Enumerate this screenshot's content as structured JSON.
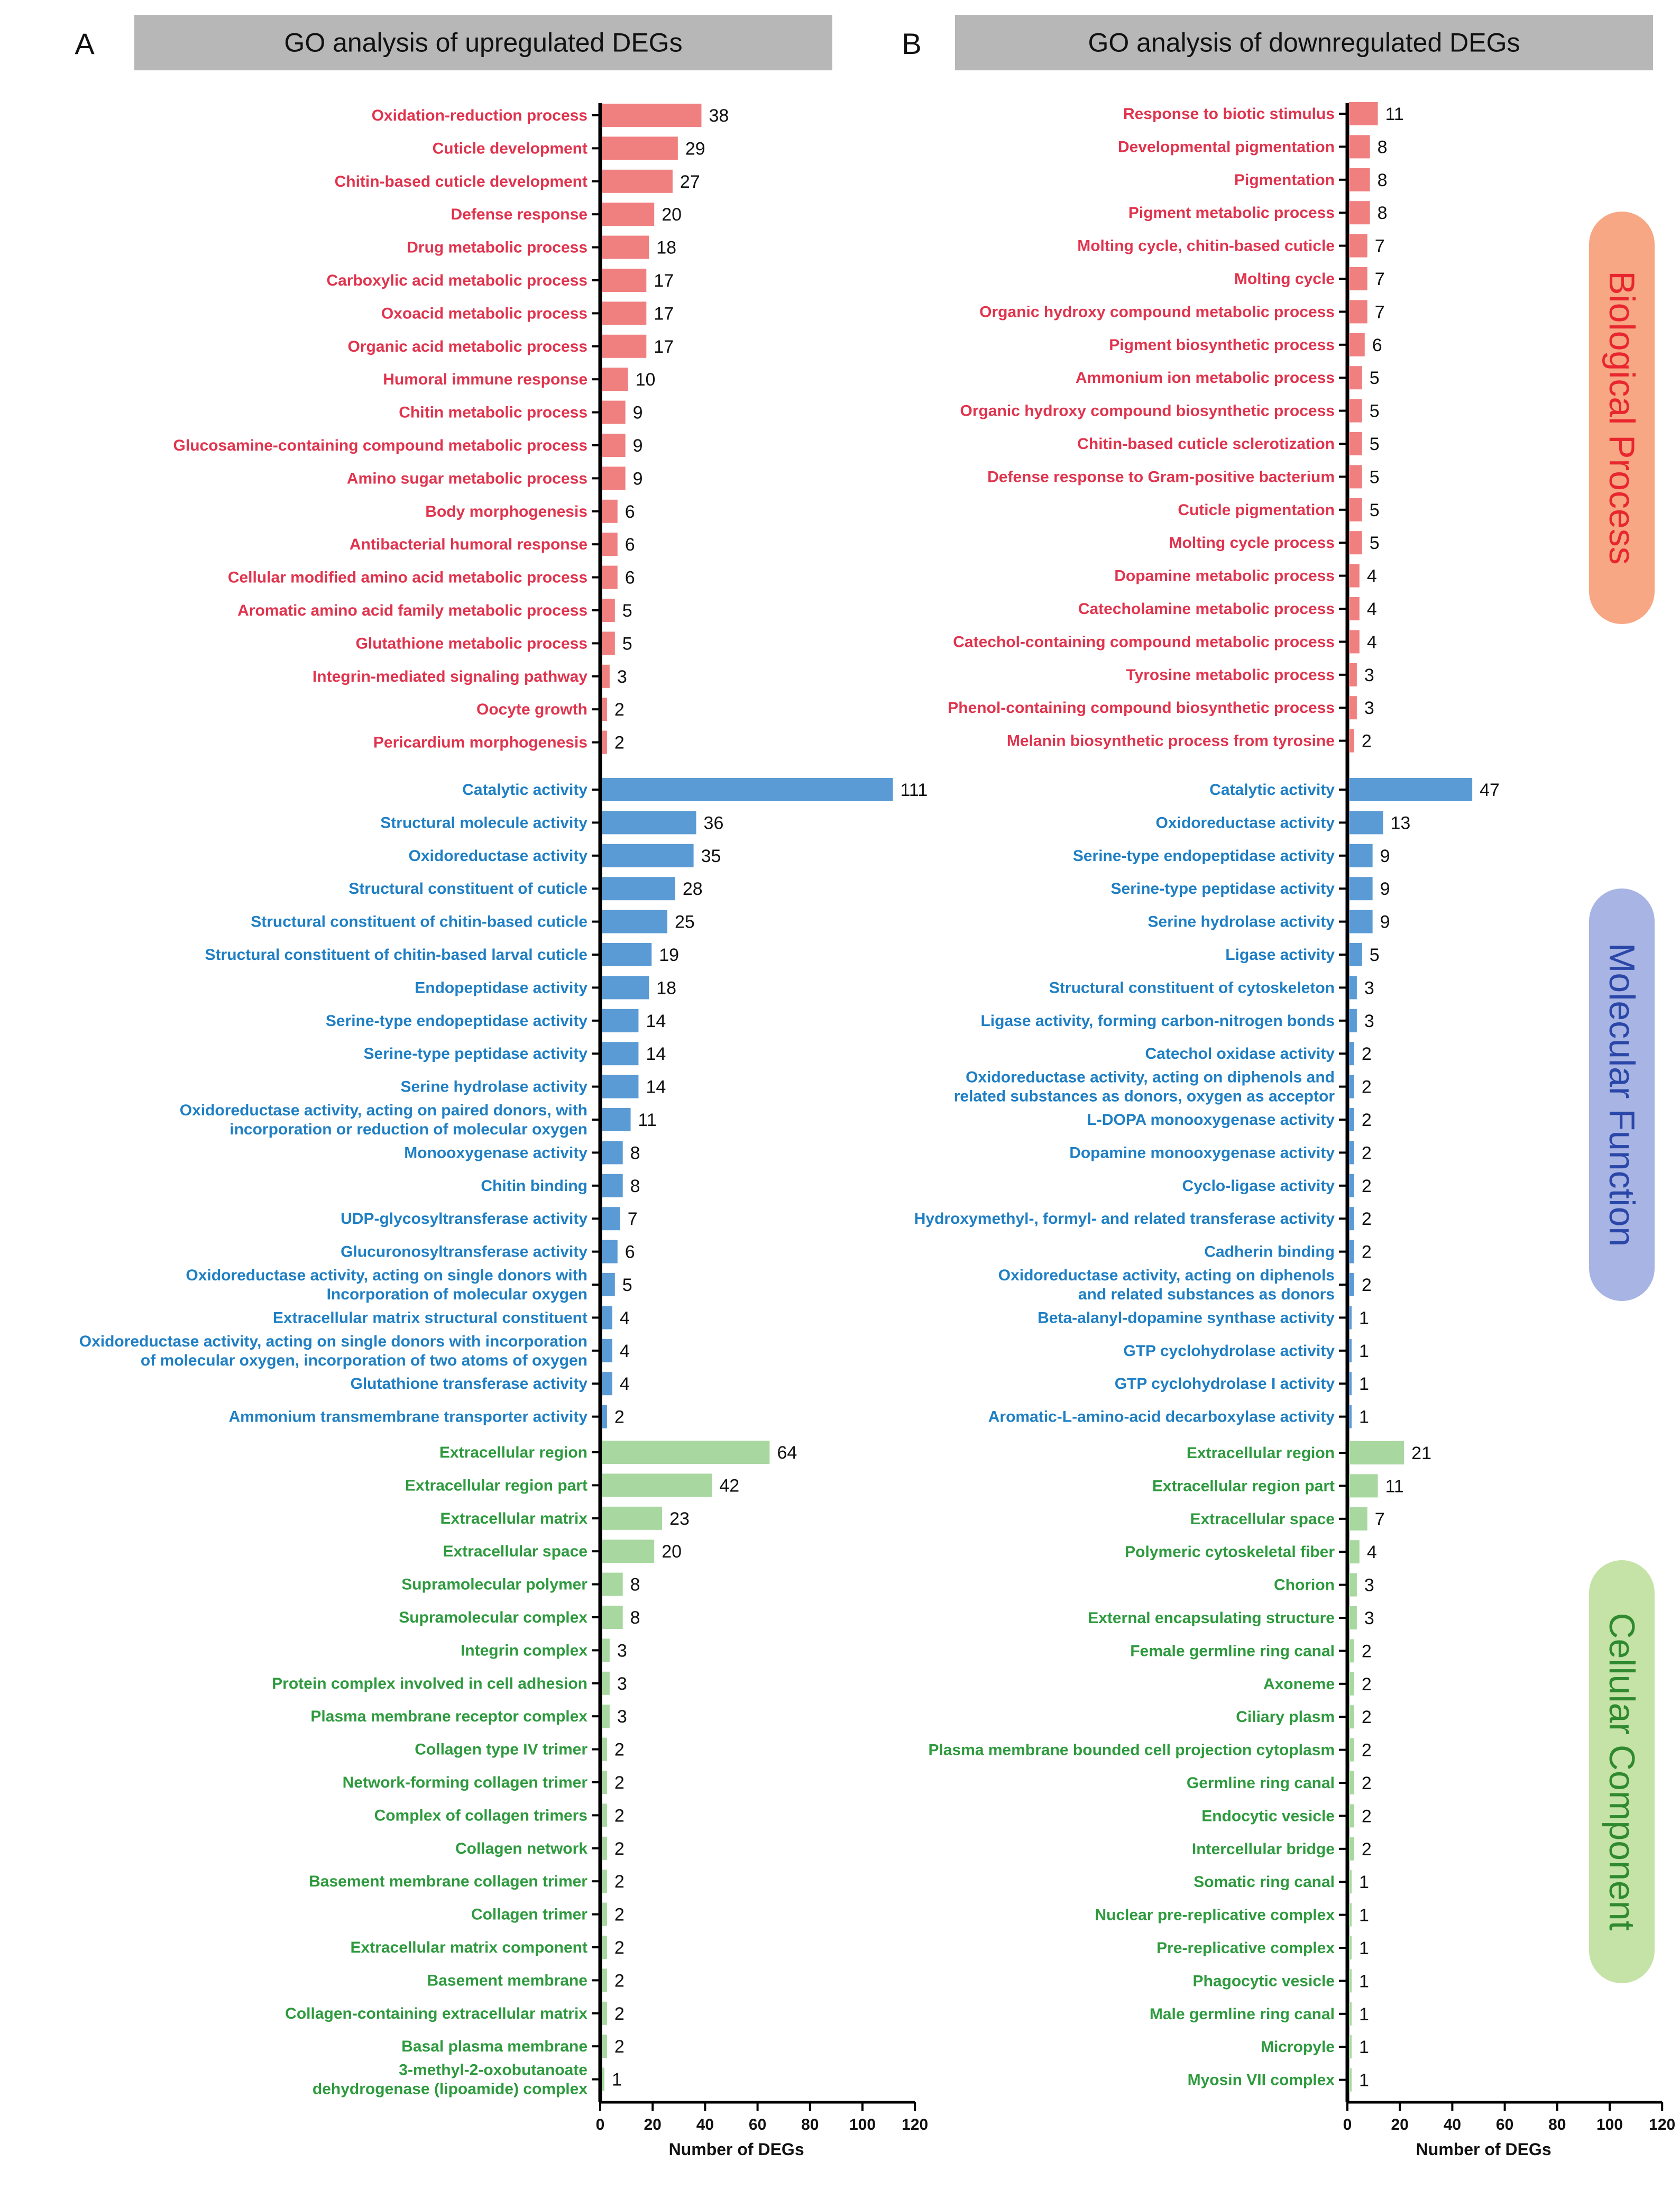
{
  "chart_data": [
    {
      "panel": "A",
      "type": "bar",
      "orientation": "horizontal",
      "title": "GO analysis of upregulated DEGs",
      "xlabel": "Number of DEGs",
      "xlim": [
        0,
        120
      ],
      "xticks": [
        0,
        20,
        40,
        60,
        80,
        100,
        120
      ],
      "groups": [
        {
          "name": "Biological Process",
          "color": "#f08080",
          "label_color": "#e0344e",
          "terms": [
            {
              "label": [
                "Oxidation-reduction process"
              ],
              "value": 38
            },
            {
              "label": [
                "Cuticle development"
              ],
              "value": 29
            },
            {
              "label": [
                "Chitin-based cuticle development"
              ],
              "value": 27
            },
            {
              "label": [
                "Defense response"
              ],
              "value": 20
            },
            {
              "label": [
                "Drug metabolic process"
              ],
              "value": 18
            },
            {
              "label": [
                "Carboxylic acid metabolic process"
              ],
              "value": 17
            },
            {
              "label": [
                "Oxoacid metabolic process"
              ],
              "value": 17
            },
            {
              "label": [
                "Organic acid metabolic process"
              ],
              "value": 17
            },
            {
              "label": [
                "Humoral immune response"
              ],
              "value": 10
            },
            {
              "label": [
                "Chitin metabolic process"
              ],
              "value": 9
            },
            {
              "label": [
                "Glucosamine-containing compound metabolic process"
              ],
              "value": 9
            },
            {
              "label": [
                "Amino sugar metabolic process"
              ],
              "value": 9
            },
            {
              "label": [
                "Body morphogenesis"
              ],
              "value": 6
            },
            {
              "label": [
                "Antibacterial humoral response"
              ],
              "value": 6
            },
            {
              "label": [
                "Cellular modified amino acid metabolic process"
              ],
              "value": 6
            },
            {
              "label": [
                "Aromatic amino acid family metabolic process"
              ],
              "value": 5
            },
            {
              "label": [
                "Glutathione metabolic process"
              ],
              "value": 5
            },
            {
              "label": [
                "Integrin-mediated signaling pathway"
              ],
              "value": 3
            },
            {
              "label": [
                "Oocyte growth"
              ],
              "value": 2
            },
            {
              "label": [
                "Pericardium morphogenesis"
              ],
              "value": 2
            }
          ]
        },
        {
          "name": "Molecular Function",
          "color": "#5b9bd5",
          "label_color": "#1f7fc4",
          "terms": [
            {
              "label": [
                "Catalytic activity"
              ],
              "value": 111
            },
            {
              "label": [
                "Structural molecule activity"
              ],
              "value": 36
            },
            {
              "label": [
                "Oxidoreductase activity"
              ],
              "value": 35
            },
            {
              "label": [
                "Structural constituent of cuticle"
              ],
              "value": 28
            },
            {
              "label": [
                "Structural constituent of chitin-based cuticle"
              ],
              "value": 25
            },
            {
              "label": [
                "Structural constituent of chitin-based larval cuticle"
              ],
              "value": 19
            },
            {
              "label": [
                "Endopeptidase activity"
              ],
              "value": 18
            },
            {
              "label": [
                "Serine-type endopeptidase activity"
              ],
              "value": 14
            },
            {
              "label": [
                "Serine-type peptidase activity"
              ],
              "value": 14
            },
            {
              "label": [
                "Serine hydrolase activity"
              ],
              "value": 14
            },
            {
              "label": [
                "Oxidoreductase activity, acting on paired donors, with",
                "incorporation or reduction of molecular oxygen"
              ],
              "value": 11
            },
            {
              "label": [
                "Monooxygenase activity"
              ],
              "value": 8
            },
            {
              "label": [
                "Chitin binding"
              ],
              "value": 8
            },
            {
              "label": [
                "UDP-glycosyltransferase activity"
              ],
              "value": 7
            },
            {
              "label": [
                "Glucuronosyltransferase activity"
              ],
              "value": 6
            },
            {
              "label": [
                "Oxidoreductase activity, acting on single donors with",
                "Incorporation of molecular oxygen"
              ],
              "value": 5
            },
            {
              "label": [
                "Extracellular matrix structural constituent"
              ],
              "value": 4
            },
            {
              "label": [
                "Oxidoreductase activity, acting on single donors with incorporation",
                "of molecular oxygen, incorporation of two atoms of oxygen"
              ],
              "value": 4
            },
            {
              "label": [
                "Glutathione transferase activity"
              ],
              "value": 4
            },
            {
              "label": [
                "Ammonium transmembrane transporter activity"
              ],
              "value": 2
            }
          ]
        },
        {
          "name": "Cellular Component",
          "color": "#a8d8a0",
          "label_color": "#2e9a3e",
          "terms": [
            {
              "label": [
                "Extracellular region"
              ],
              "value": 64
            },
            {
              "label": [
                "Extracellular region part"
              ],
              "value": 42
            },
            {
              "label": [
                "Extracellular matrix"
              ],
              "value": 23
            },
            {
              "label": [
                "Extracellular space"
              ],
              "value": 20
            },
            {
              "label": [
                "Supramolecular polymer"
              ],
              "value": 8
            },
            {
              "label": [
                "Supramolecular complex"
              ],
              "value": 8
            },
            {
              "label": [
                "Integrin complex"
              ],
              "value": 3
            },
            {
              "label": [
                "Protein complex involved in cell adhesion"
              ],
              "value": 3
            },
            {
              "label": [
                "Plasma membrane receptor complex"
              ],
              "value": 3
            },
            {
              "label": [
                "Collagen type IV trimer"
              ],
              "value": 2
            },
            {
              "label": [
                "Network-forming collagen trimer"
              ],
              "value": 2
            },
            {
              "label": [
                "Complex of collagen trimers"
              ],
              "value": 2
            },
            {
              "label": [
                "Collagen network"
              ],
              "value": 2
            },
            {
              "label": [
                "Basement membrane collagen trimer"
              ],
              "value": 2
            },
            {
              "label": [
                "Collagen trimer"
              ],
              "value": 2
            },
            {
              "label": [
                "Extracellular matrix component"
              ],
              "value": 2
            },
            {
              "label": [
                "Basement membrane"
              ],
              "value": 2
            },
            {
              "label": [
                "Collagen-containing extracellular matrix"
              ],
              "value": 2
            },
            {
              "label": [
                "Basal plasma membrane"
              ],
              "value": 2
            },
            {
              "label": [
                "3-methyl-2-oxobutanoate",
                "dehydrogenase (lipoamide) complex"
              ],
              "value": 1
            }
          ]
        }
      ]
    },
    {
      "panel": "B",
      "type": "bar",
      "orientation": "horizontal",
      "title": "GO analysis of downregulated DEGs",
      "xlabel": "Number of DEGs",
      "xlim": [
        0,
        120
      ],
      "xticks": [
        0,
        20,
        40,
        60,
        80,
        100,
        120
      ],
      "groups": [
        {
          "name": "Biological Process",
          "color": "#f08080",
          "label_color": "#e0344e",
          "terms": [
            {
              "label": [
                "Response to biotic stimulus"
              ],
              "value": 11
            },
            {
              "label": [
                "Developmental pigmentation"
              ],
              "value": 8
            },
            {
              "label": [
                "Pigmentation"
              ],
              "value": 8
            },
            {
              "label": [
                "Pigment metabolic process"
              ],
              "value": 8
            },
            {
              "label": [
                "Molting cycle, chitin-based cuticle"
              ],
              "value": 7
            },
            {
              "label": [
                "Molting cycle"
              ],
              "value": 7
            },
            {
              "label": [
                "Organic hydroxy compound metabolic process"
              ],
              "value": 7
            },
            {
              "label": [
                "Pigment biosynthetic process"
              ],
              "value": 6
            },
            {
              "label": [
                "Ammonium ion metabolic process"
              ],
              "value": 5
            },
            {
              "label": [
                "Organic hydroxy compound biosynthetic process"
              ],
              "value": 5
            },
            {
              "label": [
                "Chitin-based cuticle sclerotization"
              ],
              "value": 5
            },
            {
              "label": [
                "Defense response to Gram-positive bacterium"
              ],
              "value": 5
            },
            {
              "label": [
                "Cuticle pigmentation"
              ],
              "value": 5
            },
            {
              "label": [
                "Molting cycle process"
              ],
              "value": 5
            },
            {
              "label": [
                "Dopamine metabolic process"
              ],
              "value": 4
            },
            {
              "label": [
                "Catecholamine metabolic process"
              ],
              "value": 4
            },
            {
              "label": [
                "Catechol-containing compound metabolic process"
              ],
              "value": 4
            },
            {
              "label": [
                "Tyrosine metabolic process"
              ],
              "value": 3
            },
            {
              "label": [
                "Phenol-containing compound biosynthetic process"
              ],
              "value": 3
            },
            {
              "label": [
                "Melanin biosynthetic process from tyrosine"
              ],
              "value": 2
            }
          ]
        },
        {
          "name": "Molecular Function",
          "color": "#5b9bd5",
          "label_color": "#1f7fc4",
          "terms": [
            {
              "label": [
                "Catalytic activity"
              ],
              "value": 47
            },
            {
              "label": [
                "Oxidoreductase activity"
              ],
              "value": 13
            },
            {
              "label": [
                "Serine-type endopeptidase activity"
              ],
              "value": 9
            },
            {
              "label": [
                "Serine-type peptidase activity"
              ],
              "value": 9
            },
            {
              "label": [
                "Serine hydrolase activity"
              ],
              "value": 9
            },
            {
              "label": [
                "Ligase activity"
              ],
              "value": 5
            },
            {
              "label": [
                "Structural constituent of cytoskeleton"
              ],
              "value": 3
            },
            {
              "label": [
                "Ligase activity, forming carbon-nitrogen bonds"
              ],
              "value": 3
            },
            {
              "label": [
                "Catechol oxidase activity"
              ],
              "value": 2
            },
            {
              "label": [
                "Oxidoreductase activity, acting on diphenols and",
                "related substances as donors, oxygen as acceptor"
              ],
              "value": 2
            },
            {
              "label": [
                "L-DOPA monooxygenase activity"
              ],
              "value": 2
            },
            {
              "label": [
                "Dopamine monooxygenase activity"
              ],
              "value": 2
            },
            {
              "label": [
                "Cyclo-ligase activity"
              ],
              "value": 2
            },
            {
              "label": [
                "Hydroxymethyl-, formyl- and related transferase activity"
              ],
              "value": 2
            },
            {
              "label": [
                "Cadherin binding"
              ],
              "value": 2
            },
            {
              "label": [
                "Oxidoreductase activity, acting on diphenols",
                "and related substances as donors"
              ],
              "value": 2
            },
            {
              "label": [
                "Beta-alanyl-dopamine synthase activity"
              ],
              "value": 1
            },
            {
              "label": [
                "GTP cyclohydrolase activity"
              ],
              "value": 1
            },
            {
              "label": [
                "GTP cyclohydrolase I activity"
              ],
              "value": 1
            },
            {
              "label": [
                "Aromatic-L-amino-acid decarboxylase activity"
              ],
              "value": 1
            }
          ]
        },
        {
          "name": "Cellular Component",
          "color": "#a8d8a0",
          "label_color": "#2e9a3e",
          "terms": [
            {
              "label": [
                "Extracellular region"
              ],
              "value": 21
            },
            {
              "label": [
                "Extracellular region part"
              ],
              "value": 11
            },
            {
              "label": [
                "Extracellular space"
              ],
              "value": 7
            },
            {
              "label": [
                "Polymeric cytoskeletal fiber"
              ],
              "value": 4
            },
            {
              "label": [
                "Chorion"
              ],
              "value": 3
            },
            {
              "label": [
                "External encapsulating structure"
              ],
              "value": 3
            },
            {
              "label": [
                "Female germline ring canal"
              ],
              "value": 2
            },
            {
              "label": [
                "Axoneme"
              ],
              "value": 2
            },
            {
              "label": [
                "Ciliary plasm"
              ],
              "value": 2
            },
            {
              "label": [
                "Plasma membrane bounded cell projection cytoplasm"
              ],
              "value": 2
            },
            {
              "label": [
                "Germline ring canal"
              ],
              "value": 2
            },
            {
              "label": [
                "Endocytic vesicle"
              ],
              "value": 2
            },
            {
              "label": [
                "Intercellular bridge"
              ],
              "value": 2
            },
            {
              "label": [
                "Somatic ring canal"
              ],
              "value": 1
            },
            {
              "label": [
                "Nuclear pre-replicative complex"
              ],
              "value": 1
            },
            {
              "label": [
                "Pre-replicative complex"
              ],
              "value": 1
            },
            {
              "label": [
                "Phagocytic vesicle"
              ],
              "value": 1
            },
            {
              "label": [
                "Male germline ring canal"
              ],
              "value": 1
            },
            {
              "label": [
                "Micropyle"
              ],
              "value": 1
            },
            {
              "label": [
                "Myosin VII complex"
              ],
              "value": 1
            }
          ]
        }
      ]
    }
  ],
  "category_legend": [
    {
      "name": "Biological Process",
      "fill": "#f7a783",
      "text_color": "#e8262f"
    },
    {
      "name": "Molecular Function",
      "fill": "#a8b4e3",
      "text_color": "#2a47a8"
    },
    {
      "name": "Cellular Component",
      "fill": "#c5e3a7",
      "text_color": "#2f8a2f"
    }
  ],
  "title_bar_color": "#b7b7b7"
}
